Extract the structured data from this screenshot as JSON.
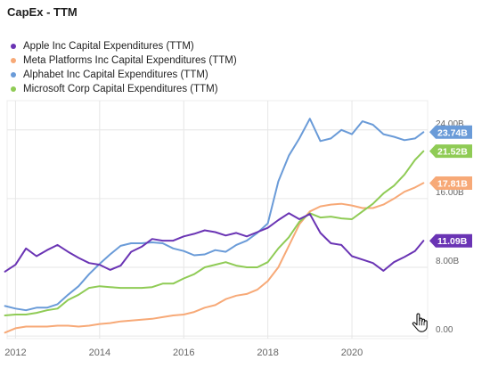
{
  "title": "CapEx - TTM",
  "colors": {
    "apple": "#6a34b4",
    "meta": "#f7a977",
    "alphabet": "#6a9bd8",
    "microsoft": "#8fcb55",
    "grid": "#e6e6e6",
    "axis_text": "#666666"
  },
  "icons": {
    "cursor": "hand-pointer-icon"
  },
  "chart_data": {
    "type": "line",
    "title": "CapEx - TTM",
    "xlabel": "",
    "ylabel": "",
    "xlim": [
      2011.8,
      2021.8
    ],
    "ylim": [
      -0.3,
      27.4
    ],
    "grid": true,
    "legend_position": "top-left",
    "x_ticks": [
      {
        "value": 2012,
        "label": "2012"
      },
      {
        "value": 2014,
        "label": "2014"
      },
      {
        "value": 2016,
        "label": "2016"
      },
      {
        "value": 2018,
        "label": "2018"
      },
      {
        "value": 2020,
        "label": "2020"
      }
    ],
    "y_ticks": [
      {
        "value": 0,
        "label": "0.00"
      },
      {
        "value": 8,
        "label": "8.00B"
      },
      {
        "value": 16,
        "label": "16.00B"
      },
      {
        "value": 24,
        "label": "24.00B"
      }
    ],
    "series": [
      {
        "name": "Apple Inc Capital Expenditures (TTM)",
        "color_key": "apple",
        "end_label": "11.09B",
        "points": [
          [
            2011.75,
            7.5
          ],
          [
            2012.0,
            8.3
          ],
          [
            2012.25,
            10.2
          ],
          [
            2012.5,
            9.3
          ],
          [
            2012.75,
            10.0
          ],
          [
            2013.0,
            10.6
          ],
          [
            2013.25,
            9.8
          ],
          [
            2013.5,
            9.1
          ],
          [
            2013.75,
            8.5
          ],
          [
            2014.0,
            8.3
          ],
          [
            2014.25,
            7.7
          ],
          [
            2014.5,
            8.2
          ],
          [
            2014.75,
            9.8
          ],
          [
            2015.0,
            10.4
          ],
          [
            2015.25,
            11.3
          ],
          [
            2015.5,
            11.1
          ],
          [
            2015.75,
            11.1
          ],
          [
            2016.0,
            11.6
          ],
          [
            2016.25,
            11.9
          ],
          [
            2016.5,
            12.3
          ],
          [
            2016.75,
            12.1
          ],
          [
            2017.0,
            11.7
          ],
          [
            2017.25,
            12.0
          ],
          [
            2017.5,
            11.6
          ],
          [
            2017.75,
            12.1
          ],
          [
            2018.0,
            12.6
          ],
          [
            2018.25,
            13.5
          ],
          [
            2018.5,
            14.3
          ],
          [
            2018.75,
            13.6
          ],
          [
            2019.0,
            14.2
          ],
          [
            2019.25,
            12.0
          ],
          [
            2019.5,
            10.8
          ],
          [
            2019.75,
            10.6
          ],
          [
            2020.0,
            9.3
          ],
          [
            2020.25,
            8.9
          ],
          [
            2020.5,
            8.5
          ],
          [
            2020.75,
            7.6
          ],
          [
            2021.0,
            8.6
          ],
          [
            2021.25,
            9.2
          ],
          [
            2021.5,
            9.9
          ],
          [
            2021.7,
            11.09
          ]
        ]
      },
      {
        "name": "Meta Platforms Inc Capital Expenditures (TTM)",
        "color_key": "meta",
        "end_label": "17.81B",
        "points": [
          [
            2011.75,
            0.4
          ],
          [
            2012.0,
            0.9
          ],
          [
            2012.25,
            1.1
          ],
          [
            2012.5,
            1.1
          ],
          [
            2012.75,
            1.1
          ],
          [
            2013.0,
            1.2
          ],
          [
            2013.25,
            1.2
          ],
          [
            2013.5,
            1.1
          ],
          [
            2013.75,
            1.2
          ],
          [
            2014.0,
            1.4
          ],
          [
            2014.25,
            1.5
          ],
          [
            2014.5,
            1.7
          ],
          [
            2014.75,
            1.8
          ],
          [
            2015.0,
            1.9
          ],
          [
            2015.25,
            2.0
          ],
          [
            2015.5,
            2.2
          ],
          [
            2015.75,
            2.4
          ],
          [
            2016.0,
            2.5
          ],
          [
            2016.25,
            2.8
          ],
          [
            2016.5,
            3.3
          ],
          [
            2016.75,
            3.6
          ],
          [
            2017.0,
            4.3
          ],
          [
            2017.25,
            4.7
          ],
          [
            2017.5,
            4.9
          ],
          [
            2017.75,
            5.4
          ],
          [
            2018.0,
            6.4
          ],
          [
            2018.25,
            8.0
          ],
          [
            2018.5,
            10.5
          ],
          [
            2018.75,
            13.0
          ],
          [
            2019.0,
            14.5
          ],
          [
            2019.25,
            15.1
          ],
          [
            2019.5,
            15.3
          ],
          [
            2019.75,
            15.4
          ],
          [
            2020.0,
            15.2
          ],
          [
            2020.25,
            14.9
          ],
          [
            2020.5,
            14.9
          ],
          [
            2020.75,
            15.3
          ],
          [
            2021.0,
            16.0
          ],
          [
            2021.25,
            16.8
          ],
          [
            2021.5,
            17.3
          ],
          [
            2021.7,
            17.81
          ]
        ]
      },
      {
        "name": "Alphabet Inc Capital Expenditures (TTM)",
        "color_key": "alphabet",
        "end_label": "23.74B",
        "points": [
          [
            2011.75,
            3.5
          ],
          [
            2012.0,
            3.2
          ],
          [
            2012.25,
            3.0
          ],
          [
            2012.5,
            3.3
          ],
          [
            2012.75,
            3.3
          ],
          [
            2013.0,
            3.7
          ],
          [
            2013.25,
            4.8
          ],
          [
            2013.5,
            5.8
          ],
          [
            2013.75,
            7.2
          ],
          [
            2014.0,
            8.4
          ],
          [
            2014.25,
            9.5
          ],
          [
            2014.5,
            10.5
          ],
          [
            2014.75,
            10.8
          ],
          [
            2015.0,
            10.8
          ],
          [
            2015.25,
            10.9
          ],
          [
            2015.5,
            10.8
          ],
          [
            2015.75,
            10.2
          ],
          [
            2016.0,
            9.9
          ],
          [
            2016.25,
            9.4
          ],
          [
            2016.5,
            9.5
          ],
          [
            2016.75,
            10.0
          ],
          [
            2017.0,
            9.8
          ],
          [
            2017.25,
            10.6
          ],
          [
            2017.5,
            11.1
          ],
          [
            2017.75,
            12.0
          ],
          [
            2018.0,
            13.1
          ],
          [
            2018.25,
            18.0
          ],
          [
            2018.5,
            21.0
          ],
          [
            2018.75,
            23.0
          ],
          [
            2019.0,
            25.3
          ],
          [
            2019.25,
            22.7
          ],
          [
            2019.5,
            23.0
          ],
          [
            2019.75,
            24.0
          ],
          [
            2020.0,
            23.5
          ],
          [
            2020.25,
            25.0
          ],
          [
            2020.5,
            24.6
          ],
          [
            2020.75,
            23.5
          ],
          [
            2021.0,
            23.2
          ],
          [
            2021.25,
            22.8
          ],
          [
            2021.5,
            23.0
          ],
          [
            2021.7,
            23.74
          ]
        ]
      },
      {
        "name": "Microsoft Corp Capital Expenditures (TTM)",
        "color_key": "microsoft",
        "end_label": "21.52B",
        "points": [
          [
            2011.75,
            2.4
          ],
          [
            2012.0,
            2.5
          ],
          [
            2012.25,
            2.5
          ],
          [
            2012.5,
            2.7
          ],
          [
            2012.75,
            3.0
          ],
          [
            2013.0,
            3.2
          ],
          [
            2013.25,
            4.2
          ],
          [
            2013.5,
            4.8
          ],
          [
            2013.75,
            5.6
          ],
          [
            2014.0,
            5.8
          ],
          [
            2014.25,
            5.7
          ],
          [
            2014.5,
            5.6
          ],
          [
            2014.75,
            5.6
          ],
          [
            2015.0,
            5.6
          ],
          [
            2015.25,
            5.7
          ],
          [
            2015.5,
            6.1
          ],
          [
            2015.75,
            6.1
          ],
          [
            2016.0,
            6.7
          ],
          [
            2016.25,
            7.2
          ],
          [
            2016.5,
            8.0
          ],
          [
            2016.75,
            8.3
          ],
          [
            2017.0,
            8.6
          ],
          [
            2017.25,
            8.2
          ],
          [
            2017.5,
            8.0
          ],
          [
            2017.75,
            8.0
          ],
          [
            2018.0,
            8.6
          ],
          [
            2018.25,
            10.2
          ],
          [
            2018.5,
            11.5
          ],
          [
            2018.75,
            13.3
          ],
          [
            2019.0,
            14.3
          ],
          [
            2019.25,
            13.8
          ],
          [
            2019.5,
            13.9
          ],
          [
            2019.75,
            13.7
          ],
          [
            2020.0,
            13.6
          ],
          [
            2020.25,
            14.5
          ],
          [
            2020.5,
            15.4
          ],
          [
            2020.75,
            16.6
          ],
          [
            2021.0,
            17.5
          ],
          [
            2021.25,
            18.8
          ],
          [
            2021.5,
            20.5
          ],
          [
            2021.7,
            21.52
          ]
        ]
      }
    ]
  }
}
